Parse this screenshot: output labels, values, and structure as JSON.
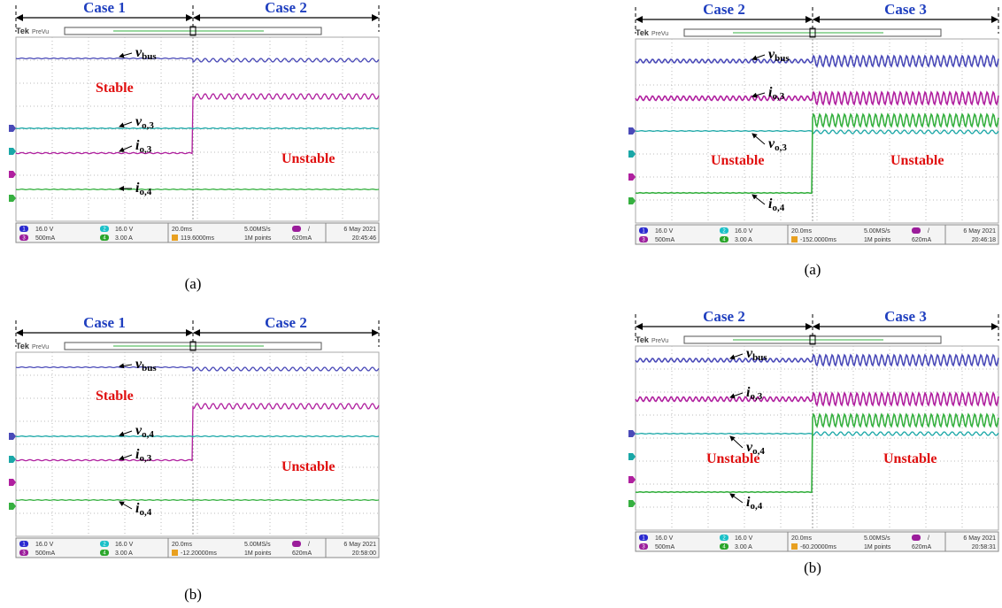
{
  "panels": [
    {
      "cases": [
        "Case 1",
        "Case 2"
      ],
      "scope": {
        "brand": "Tek",
        "mode": "PreVu"
      },
      "signals": [
        {
          "symbol": "v",
          "sub": "bus"
        },
        {
          "symbol": "v",
          "sub": "o,3"
        },
        {
          "symbol": "i",
          "sub": "o,3"
        },
        {
          "symbol": "i",
          "sub": "o,4"
        }
      ],
      "status": [
        "Stable",
        "Unstable"
      ],
      "readout": {
        "channels": [
          "1",
          "2",
          "3",
          "4"
        ],
        "ch1": "16.0 V",
        "ch2": "16.0 V",
        "ch3": "500mA",
        "ch4": "3.00 A",
        "timebase": "20.0ms",
        "trigger_pos": "119.6000ms",
        "rate": "5.00MS/s",
        "points": "1M points",
        "trig_slope": "/",
        "trig_level": "620mA",
        "date": "6 May 2021",
        "time": "20:45:46"
      },
      "caption": "(a)"
    },
    {
      "cases": [
        "Case 2",
        "Case 3"
      ],
      "scope": {
        "brand": "Tek",
        "mode": "PreVu"
      },
      "signals": [
        {
          "symbol": "v",
          "sub": "bus"
        },
        {
          "symbol": "i",
          "sub": "o,3"
        },
        {
          "symbol": "v",
          "sub": "o,3"
        },
        {
          "symbol": "i",
          "sub": "o,4"
        }
      ],
      "status": [
        "Unstable",
        "Unstable"
      ],
      "readout": {
        "channels": [
          "1",
          "2",
          "3",
          "4"
        ],
        "ch1": "16.0 V",
        "ch2": "16.0 V",
        "ch3": "500mA",
        "ch4": "3.00 A",
        "timebase": "20.0ms",
        "trigger_pos": "-152.0000ms",
        "rate": "5.00MS/s",
        "points": "1M points",
        "trig_slope": "/",
        "trig_level": "620mA",
        "date": "6 May 2021",
        "time": "20:46:18"
      },
      "caption": "(a)"
    },
    {
      "cases": [
        "Case 1",
        "Case 2"
      ],
      "scope": {
        "brand": "Tek",
        "mode": "PreVu"
      },
      "signals": [
        {
          "symbol": "v",
          "sub": "bus"
        },
        {
          "symbol": "v",
          "sub": "o,4"
        },
        {
          "symbol": "i",
          "sub": "o,3"
        },
        {
          "symbol": "i",
          "sub": "o,4"
        }
      ],
      "status": [
        "Stable",
        "Unstable"
      ],
      "readout": {
        "channels": [
          "1",
          "2",
          "3",
          "4"
        ],
        "ch1": "16.0 V",
        "ch2": "16.0 V",
        "ch3": "500mA",
        "ch4": "3.00 A",
        "timebase": "20.0ms",
        "trigger_pos": "-12.20000ms",
        "rate": "5.00MS/s",
        "points": "1M points",
        "trig_slope": "/",
        "trig_level": "620mA",
        "date": "6 May 2021",
        "time": "20:58:00"
      },
      "caption": "(b)"
    },
    {
      "cases": [
        "Case 2",
        "Case 3"
      ],
      "scope": {
        "brand": "Tek",
        "mode": "PreVu"
      },
      "signals": [
        {
          "symbol": "v",
          "sub": "bus"
        },
        {
          "symbol": "i",
          "sub": "o,3"
        },
        {
          "symbol": "v",
          "sub": "o,4"
        },
        {
          "symbol": "i",
          "sub": "o,4"
        }
      ],
      "status": [
        "Unstable",
        "Unstable"
      ],
      "readout": {
        "channels": [
          "1",
          "2",
          "3",
          "4"
        ],
        "ch1": "16.0 V",
        "ch2": "16.0 V",
        "ch3": "500mA",
        "ch4": "3.00 A",
        "timebase": "20.0ms",
        "trigger_pos": "-60.20000ms",
        "rate": "5.00MS/s",
        "points": "1M points",
        "trig_slope": "/",
        "trig_level": "620mA",
        "date": "6 May 2021",
        "time": "20:58:31"
      },
      "caption": "(b)"
    }
  ]
}
